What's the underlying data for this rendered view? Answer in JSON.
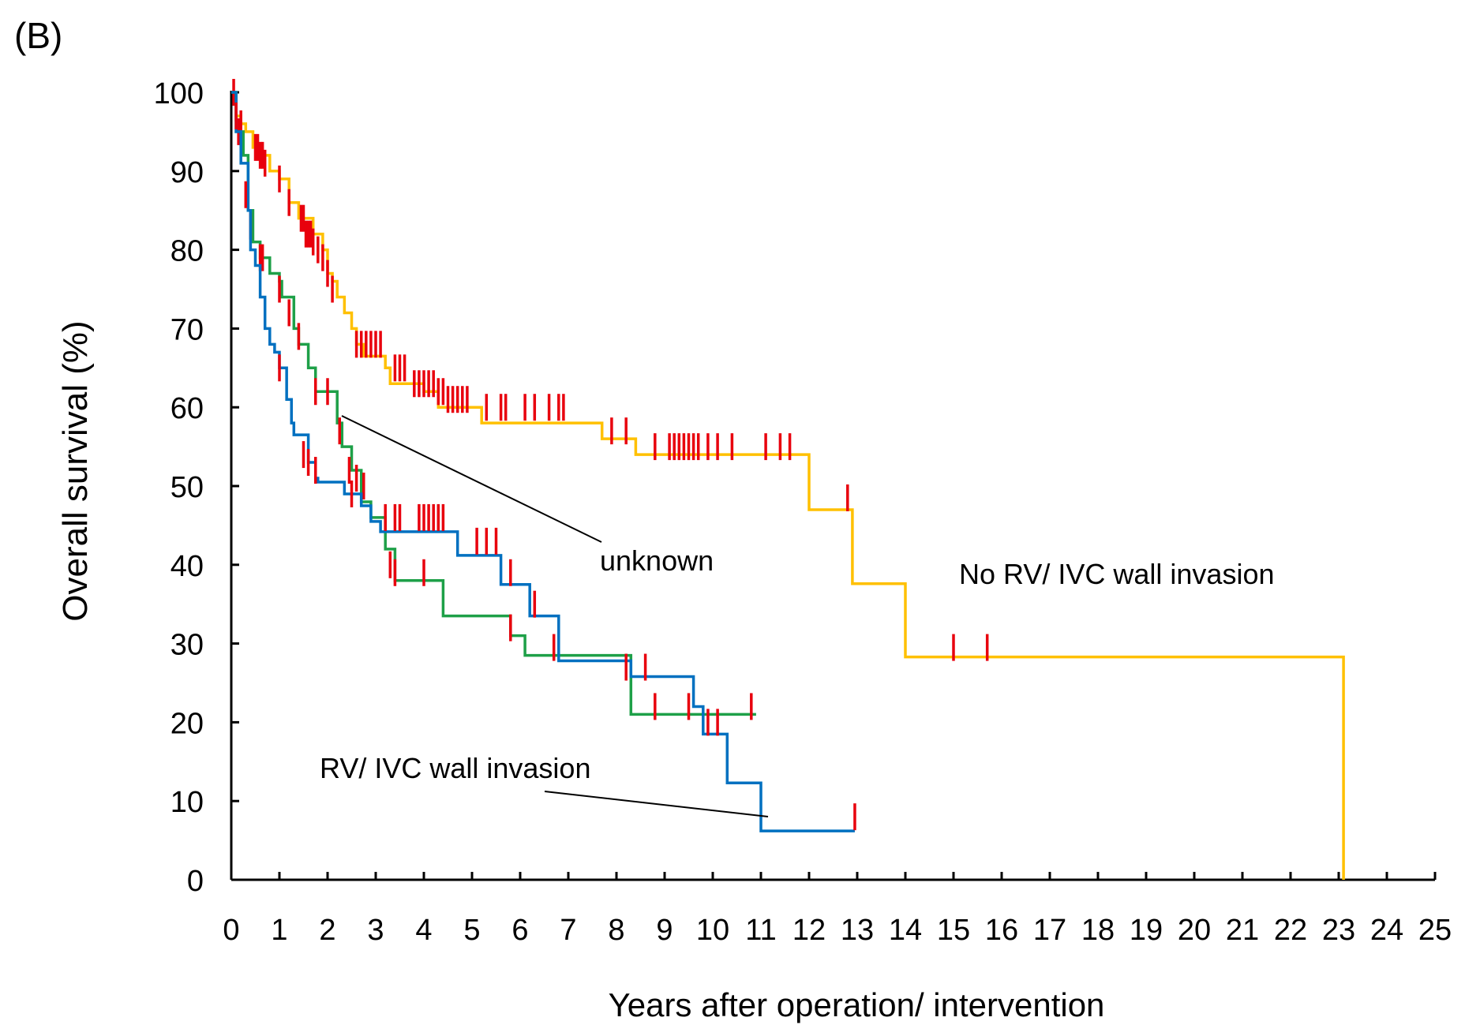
{
  "panel_label": "(B)",
  "chart_data": {
    "type": "line",
    "step": true,
    "title": "",
    "xlabel": "Years after operation/ intervention",
    "ylabel": "Overall survival (%)",
    "xlim": [
      0,
      25
    ],
    "ylim": [
      0,
      100
    ],
    "xticks": [
      "0",
      "1",
      "2",
      "3",
      "4",
      "5",
      "6",
      "7",
      "8",
      "9",
      "10",
      "11",
      "12",
      "13",
      "14",
      "15",
      "16",
      "17",
      "18",
      "19",
      "20",
      "21",
      "22",
      "23",
      "24",
      "25"
    ],
    "yticks": [
      "0",
      "10",
      "20",
      "30",
      "40",
      "50",
      "60",
      "70",
      "80",
      "90",
      "100"
    ],
    "grid": false,
    "censor_color": "#e8000d",
    "annotations": [
      {
        "text": "unknown",
        "series": "unknown"
      },
      {
        "text": "No RV/ IVC wall invasion",
        "series": "No RV/ IVC wall invasion"
      },
      {
        "text": "RV/ IVC wall invasion",
        "series": "RV/ IVC wall invasion"
      }
    ],
    "series": [
      {
        "name": "No RV/ IVC wall invasion",
        "color": "#ffc000",
        "steps": [
          [
            0,
            100
          ],
          [
            0.1,
            97
          ],
          [
            0.2,
            96
          ],
          [
            0.3,
            95
          ],
          [
            0.45,
            93
          ],
          [
            0.6,
            92
          ],
          [
            0.8,
            90
          ],
          [
            1.0,
            89
          ],
          [
            1.2,
            86
          ],
          [
            1.4,
            84
          ],
          [
            1.7,
            82
          ],
          [
            1.9,
            80
          ],
          [
            2.0,
            77
          ],
          [
            2.1,
            76
          ],
          [
            2.2,
            74
          ],
          [
            2.35,
            72
          ],
          [
            2.5,
            70
          ],
          [
            2.6,
            68
          ],
          [
            2.75,
            66.5
          ],
          [
            3.2,
            65
          ],
          [
            3.3,
            63
          ],
          [
            4.0,
            62
          ],
          [
            4.3,
            60
          ],
          [
            5.2,
            58
          ],
          [
            7.7,
            56
          ],
          [
            8.4,
            54
          ],
          [
            12.0,
            47
          ],
          [
            12.9,
            37.6
          ],
          [
            14.0,
            28.3
          ],
          [
            23.1,
            0
          ]
        ],
        "end_x": 23.1,
        "censors": [
          [
            0.05,
            100
          ],
          [
            0.1,
            98
          ],
          [
            0.2,
            96
          ],
          [
            0.5,
            93
          ],
          [
            0.55,
            93
          ],
          [
            0.6,
            92
          ],
          [
            0.65,
            92
          ],
          [
            0.7,
            91
          ],
          [
            1.0,
            89
          ],
          [
            1.2,
            86
          ],
          [
            1.45,
            84
          ],
          [
            1.5,
            84
          ],
          [
            1.55,
            82
          ],
          [
            1.6,
            82
          ],
          [
            1.65,
            82
          ],
          [
            1.7,
            81
          ],
          [
            1.8,
            80
          ],
          [
            1.9,
            79
          ],
          [
            2.0,
            77
          ],
          [
            2.1,
            75
          ],
          [
            2.6,
            68
          ],
          [
            2.7,
            68
          ],
          [
            2.8,
            68
          ],
          [
            2.9,
            68
          ],
          [
            3.0,
            68
          ],
          [
            3.1,
            68
          ],
          [
            3.4,
            65
          ],
          [
            3.5,
            65
          ],
          [
            3.6,
            65
          ],
          [
            3.8,
            63
          ],
          [
            3.9,
            63
          ],
          [
            4.0,
            63
          ],
          [
            4.1,
            63
          ],
          [
            4.2,
            63
          ],
          [
            4.3,
            62
          ],
          [
            4.4,
            62
          ],
          [
            4.5,
            61
          ],
          [
            4.6,
            61
          ],
          [
            4.7,
            61
          ],
          [
            4.8,
            61
          ],
          [
            4.9,
            61
          ],
          [
            5.3,
            60
          ],
          [
            5.6,
            60
          ],
          [
            5.7,
            60
          ],
          [
            6.1,
            60
          ],
          [
            6.3,
            60
          ],
          [
            6.6,
            60
          ],
          [
            6.8,
            60
          ],
          [
            6.9,
            60
          ],
          [
            7.9,
            57
          ],
          [
            8.2,
            57
          ],
          [
            8.8,
            55
          ],
          [
            9.1,
            55
          ],
          [
            9.2,
            55
          ],
          [
            9.3,
            55
          ],
          [
            9.4,
            55
          ],
          [
            9.5,
            55
          ],
          [
            9.6,
            55
          ],
          [
            9.7,
            55
          ],
          [
            9.9,
            55
          ],
          [
            10.1,
            55
          ],
          [
            10.4,
            55
          ],
          [
            11.1,
            55
          ],
          [
            11.4,
            55
          ],
          [
            11.6,
            55
          ],
          [
            12.8,
            48.5
          ],
          [
            15.0,
            29.5
          ],
          [
            15.7,
            29.5
          ]
        ]
      },
      {
        "name": "unknown",
        "color": "#1ea048",
        "steps": [
          [
            0,
            100
          ],
          [
            0.1,
            95
          ],
          [
            0.25,
            92
          ],
          [
            0.35,
            85
          ],
          [
            0.45,
            81
          ],
          [
            0.6,
            79
          ],
          [
            0.8,
            77
          ],
          [
            1.0,
            76
          ],
          [
            1.05,
            74
          ],
          [
            1.3,
            70
          ],
          [
            1.4,
            68
          ],
          [
            1.6,
            65
          ],
          [
            1.75,
            62
          ],
          [
            2.2,
            58
          ],
          [
            2.3,
            55
          ],
          [
            2.5,
            52
          ],
          [
            2.7,
            48
          ],
          [
            2.9,
            46
          ],
          [
            3.2,
            42
          ],
          [
            3.4,
            38
          ],
          [
            4.4,
            33.5
          ],
          [
            5.8,
            31
          ],
          [
            6.1,
            28.5
          ],
          [
            8.3,
            21
          ]
        ],
        "end_x": 10.9,
        "censors": [
          [
            0.15,
            95
          ],
          [
            0.4,
            83
          ],
          [
            0.6,
            79
          ],
          [
            0.65,
            79
          ],
          [
            1.0,
            75
          ],
          [
            1.2,
            72
          ],
          [
            1.4,
            69
          ],
          [
            1.75,
            62
          ],
          [
            2.0,
            62
          ],
          [
            2.25,
            57
          ],
          [
            2.45,
            52
          ],
          [
            2.6,
            51
          ],
          [
            2.75,
            50
          ],
          [
            3.3,
            40
          ],
          [
            3.4,
            39
          ],
          [
            4.0,
            39
          ],
          [
            5.8,
            32
          ],
          [
            6.7,
            29.5
          ],
          [
            8.8,
            22
          ],
          [
            9.5,
            22
          ],
          [
            10.8,
            22
          ]
        ]
      },
      {
        "name": "RV/ IVC wall invasion",
        "color": "#0070c0",
        "steps": [
          [
            0,
            100
          ],
          [
            0.1,
            95
          ],
          [
            0.2,
            91
          ],
          [
            0.35,
            85
          ],
          [
            0.4,
            80
          ],
          [
            0.5,
            78
          ],
          [
            0.6,
            74
          ],
          [
            0.7,
            70
          ],
          [
            0.8,
            68
          ],
          [
            0.9,
            67
          ],
          [
            1.0,
            65
          ],
          [
            1.15,
            61
          ],
          [
            1.25,
            58
          ],
          [
            1.3,
            56.5
          ],
          [
            1.6,
            53
          ],
          [
            1.75,
            51
          ],
          [
            1.8,
            50.5
          ],
          [
            2.35,
            49
          ],
          [
            2.7,
            47.5
          ],
          [
            2.9,
            45.5
          ],
          [
            3.1,
            44.2
          ],
          [
            4.7,
            41.2
          ],
          [
            5.6,
            37.5
          ],
          [
            6.2,
            33.5
          ],
          [
            6.8,
            27.8
          ],
          [
            8.3,
            25.8
          ],
          [
            9.6,
            22
          ],
          [
            9.8,
            18.5
          ],
          [
            10.3,
            12.3
          ],
          [
            11.0,
            6.2
          ]
        ],
        "end_x": 12.95,
        "censors": [
          [
            0.1,
            97
          ],
          [
            0.3,
            87
          ],
          [
            1.0,
            65
          ],
          [
            1.5,
            54
          ],
          [
            1.6,
            53
          ],
          [
            1.75,
            52
          ],
          [
            2.5,
            49
          ],
          [
            3.2,
            46
          ],
          [
            3.4,
            46
          ],
          [
            3.5,
            46
          ],
          [
            3.9,
            46
          ],
          [
            4.0,
            46
          ],
          [
            4.1,
            46
          ],
          [
            4.2,
            46
          ],
          [
            4.3,
            46
          ],
          [
            4.4,
            46
          ],
          [
            5.1,
            43
          ],
          [
            5.3,
            43
          ],
          [
            5.5,
            43
          ],
          [
            5.8,
            39
          ],
          [
            6.3,
            35
          ],
          [
            8.2,
            27
          ],
          [
            8.6,
            27
          ],
          [
            9.9,
            20
          ],
          [
            10.1,
            20
          ],
          [
            12.95,
            8
          ]
        ]
      }
    ]
  }
}
